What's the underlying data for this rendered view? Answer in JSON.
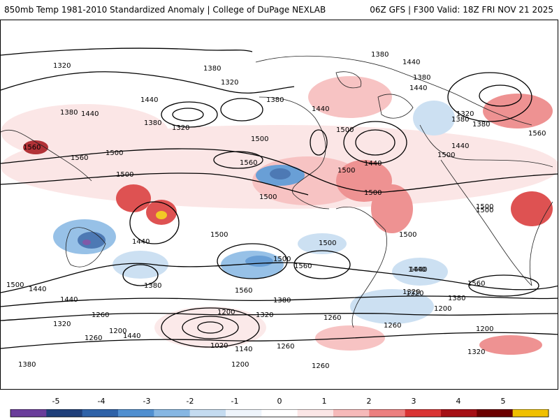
{
  "header": {
    "title": "850mb Temp 1981-2010 Standardized Anomaly | College of DuPage NEXLAB",
    "run_info": "06Z GFS | F300 Valid: 18Z FRI NOV 21 2025"
  },
  "map": {
    "contour_labels": [
      "1320",
      "1380",
      "1380",
      "1320",
      "1440",
      "1380",
      "1380",
      "1440",
      "1320",
      "1380",
      "1440",
      "1380",
      "1500",
      "1500",
      "1500",
      "1560",
      "1560",
      "1560",
      "1500",
      "1500",
      "1500",
      "1500",
      "1380",
      "1440",
      "1440",
      "1500",
      "1440",
      "1320",
      "1380",
      "1440",
      "1560",
      "1500",
      "1500",
      "1560",
      "1500",
      "1500",
      "1440",
      "1440",
      "1500",
      "1380",
      "1560",
      "1500",
      "1440",
      "1380",
      "1320",
      "1260",
      "1200",
      "1320",
      "1260",
      "1200",
      "1200",
      "1320",
      "1020",
      "1140",
      "1260",
      "1200",
      "1260",
      "1260",
      "1320",
      "1380",
      "1260",
      "1200",
      "1320",
      "1560",
      "1440",
      "1440",
      "1500",
      "1440",
      "1380"
    ]
  },
  "colorbar": {
    "ticks": [
      "-5",
      "-4",
      "-3",
      "-2",
      "-1",
      "0",
      "1",
      "2",
      "3",
      "4",
      "5"
    ],
    "colors": [
      "#6a3d9a",
      "#1f3f7a",
      "#2e62a8",
      "#4f8fd0",
      "#86b7e3",
      "#c4dbf0",
      "#eef4fb",
      "#ffffff",
      "#fbe6e6",
      "#f6b9b9",
      "#ec7f7f",
      "#d93434",
      "#a50f15",
      "#6b0000",
      "#f0c000"
    ]
  }
}
